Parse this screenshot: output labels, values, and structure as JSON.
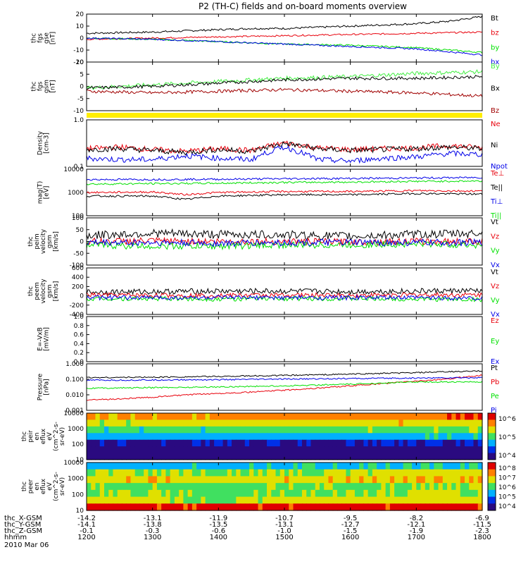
{
  "title": "P2 (TH-C) fields and on-board moments overview",
  "date_label": "2010 Mar 06",
  "time_axis": {
    "row_labels": [
      "thc_X-GSM",
      "thc_Y-GSM",
      "thc_Z-GSM",
      "hhmm"
    ],
    "ticks": [
      {
        "t": 1200,
        "x_gsm": "-14.2",
        "y_gsm": "-14.1",
        "z_gsm": "-0.1",
        "hhmm": "1200"
      },
      {
        "t": 1300,
        "x_gsm": "-13.1",
        "y_gsm": "-13.8",
        "z_gsm": "-0.3",
        "hhmm": "1300"
      },
      {
        "t": 1400,
        "x_gsm": "-11.9",
        "y_gsm": "-13.5",
        "z_gsm": "-0.6",
        "hhmm": "1400"
      },
      {
        "t": 1500,
        "x_gsm": "-10.7",
        "y_gsm": "-13.1",
        "z_gsm": "-1.0",
        "hhmm": "1500"
      },
      {
        "t": 1600,
        "x_gsm": "-9.5",
        "y_gsm": "-12.7",
        "z_gsm": "-1.5",
        "hhmm": "1600"
      },
      {
        "t": 1700,
        "x_gsm": "-8.2",
        "y_gsm": "-12.1",
        "z_gsm": "-1.9",
        "hhmm": "1700"
      },
      {
        "t": 1800,
        "x_gsm": "-6.9",
        "y_gsm": "-11.5",
        "z_gsm": "-2.3",
        "hhmm": "1800"
      }
    ]
  },
  "colors": {
    "black": "#000000",
    "red": "#e8000b",
    "green": "#00e000",
    "blue": "#0000e8",
    "darkred": "#a00000",
    "lime": "#44ee44",
    "yellow": "#ffee00"
  },
  "chart_data": [
    {
      "type": "line",
      "id": "fgs_gse",
      "ylabel": [
        "thc",
        "fgs",
        "gse",
        "[nT]"
      ],
      "ylim": [
        -20,
        20
      ],
      "yticks": [
        "20",
        "10",
        "0",
        "-10",
        "-20"
      ],
      "series": [
        {
          "name": "Bt",
          "color": "#000000",
          "x": [
            1200,
            1230,
            1300,
            1330,
            1400,
            1430,
            1500,
            1530,
            1600,
            1630,
            1700,
            1730,
            1800
          ],
          "y": [
            4,
            4.5,
            5,
            6,
            7,
            8,
            8,
            9,
            10,
            11,
            12,
            14,
            18
          ]
        },
        {
          "name": "bz",
          "color": "#e8000b",
          "x": [
            1200,
            1300,
            1400,
            1500,
            1600,
            1700,
            1800
          ],
          "y": [
            -1,
            0,
            1,
            2,
            3,
            4,
            5
          ]
        },
        {
          "name": "by",
          "color": "#00e000",
          "x": [
            1200,
            1300,
            1400,
            1500,
            1600,
            1700,
            1800
          ],
          "y": [
            0,
            -1,
            -3,
            -5,
            -6,
            -8,
            -12
          ]
        },
        {
          "name": "bx",
          "color": "#0000e8",
          "x": [
            1200,
            1300,
            1400,
            1500,
            1600,
            1700,
            1800
          ],
          "y": [
            0,
            -1,
            -3,
            -5,
            -7,
            -9,
            -14
          ]
        }
      ]
    },
    {
      "type": "line",
      "id": "fgs_gsm",
      "ylabel": [
        "thc",
        "fgs",
        "gsm",
        "[nT]"
      ],
      "ylim": [
        -15,
        15
      ],
      "yticks": [
        "10",
        "5",
        "0",
        "-5",
        "-10"
      ],
      "series": [
        {
          "name": "By",
          "color": "#44ee44",
          "x": [
            1200,
            1300,
            1400,
            1500,
            1600,
            1700,
            1800
          ],
          "y": [
            -1,
            1,
            3,
            5,
            6,
            8,
            9
          ]
        },
        {
          "name": "Bx",
          "color": "#000000",
          "x": [
            1200,
            1300,
            1400,
            1500,
            1600,
            1700,
            1800
          ],
          "y": [
            -1,
            0,
            2,
            4,
            5,
            5,
            6
          ]
        },
        {
          "name": "Bz",
          "color": "#a00000",
          "x": [
            1200,
            1300,
            1400,
            1500,
            1600,
            1700,
            1800
          ],
          "y": [
            -3,
            -4,
            -3,
            -2,
            -3,
            -4,
            -6
          ]
        }
      ]
    },
    {
      "type": "line",
      "id": "density",
      "log": true,
      "ylabel": [
        "Density",
        "[cm-3]"
      ],
      "ylim": [
        0.1,
        1.0
      ],
      "yticks": [
        "1.0",
        "0.1"
      ],
      "series": [
        {
          "name": "Ne",
          "color": "#e8000b",
          "x": [
            1200,
            1230,
            1300,
            1330,
            1400,
            1430,
            1500,
            1530,
            1600,
            1630,
            1700,
            1730,
            1800
          ],
          "y": [
            0.24,
            0.26,
            0.23,
            0.21,
            0.24,
            0.22,
            0.32,
            0.25,
            0.23,
            0.24,
            0.25,
            0.28,
            0.25
          ]
        },
        {
          "name": "Ni",
          "color": "#000000",
          "x": [
            1200,
            1230,
            1300,
            1330,
            1400,
            1430,
            1500,
            1530,
            1600,
            1630,
            1700,
            1730,
            1800
          ],
          "y": [
            0.23,
            0.24,
            0.22,
            0.2,
            0.23,
            0.21,
            0.31,
            0.24,
            0.22,
            0.23,
            0.24,
            0.26,
            0.24
          ]
        },
        {
          "name": "Npot",
          "color": "#0000e8",
          "x": [
            1200,
            1230,
            1300,
            1330,
            1400,
            1430,
            1500,
            1530,
            1600,
            1630,
            1700,
            1730,
            1800
          ],
          "y": [
            0.15,
            0.14,
            0.14,
            0.17,
            0.15,
            0.14,
            0.26,
            0.14,
            0.13,
            0.15,
            0.16,
            0.19,
            0.18
          ]
        }
      ]
    },
    {
      "type": "line",
      "id": "temperature",
      "log": true,
      "ylabel": [
        "mag(T)",
        "[eV]"
      ],
      "ylim": [
        100,
        10000
      ],
      "yticks": [
        "10000",
        "1000",
        "100"
      ],
      "series": [
        {
          "name": "Te⊥",
          "color": "#e8000b",
          "x": [
            1200,
            1300,
            1330,
            1400,
            1500,
            1600,
            1700,
            1800
          ],
          "y": [
            1000,
            1050,
            800,
            1000,
            1100,
            1100,
            1200,
            1150
          ]
        },
        {
          "name": "Te||",
          "color": "#000000",
          "x": [
            1200,
            1300,
            1330,
            1400,
            1500,
            1600,
            1700,
            1800
          ],
          "y": [
            700,
            700,
            500,
            700,
            800,
            800,
            900,
            850
          ]
        },
        {
          "name": "Ti⊥",
          "color": "#0000e8",
          "x": [
            1200,
            1300,
            1400,
            1500,
            1600,
            1700,
            1800
          ],
          "y": [
            3600,
            3600,
            3700,
            3900,
            4000,
            4200,
            4400
          ]
        },
        {
          "name": "Ti||",
          "color": "#00e000",
          "x": [
            1200,
            1300,
            1400,
            1500,
            1600,
            1700,
            1800
          ],
          "y": [
            2300,
            2400,
            2500,
            2700,
            2800,
            3000,
            3100
          ]
        }
      ]
    },
    {
      "type": "line",
      "id": "peim_velocity",
      "ylabel": [
        "thc",
        "peim",
        "velocity",
        "gsm",
        "[km/s]"
      ],
      "ylim": [
        -100,
        100
      ],
      "yticks": [
        "100",
        "50",
        "0",
        "-50",
        "-100"
      ],
      "series": [
        {
          "name": "Vt",
          "color": "#000000",
          "x": [
            1200,
            1300,
            1400,
            1500,
            1600,
            1700,
            1800
          ],
          "y": [
            25,
            35,
            30,
            28,
            22,
            30,
            35
          ]
        },
        {
          "name": "Vz",
          "color": "#e8000b",
          "x": [
            1200,
            1300,
            1400,
            1500,
            1600,
            1700,
            1800
          ],
          "y": [
            0,
            2,
            0,
            0,
            -2,
            0,
            0
          ]
        },
        {
          "name": "Vy",
          "color": "#00e000",
          "x": [
            1200,
            1300,
            1400,
            1500,
            1600,
            1700,
            1800
          ],
          "y": [
            -15,
            -20,
            -20,
            -15,
            -15,
            -10,
            -15
          ]
        },
        {
          "name": "Vx",
          "color": "#0000e8",
          "x": [
            1200,
            1300,
            1400,
            1500,
            1600,
            1700,
            1800
          ],
          "y": [
            -5,
            -5,
            -8,
            -5,
            -5,
            -5,
            -5
          ]
        }
      ]
    },
    {
      "type": "line",
      "id": "peem_velocity",
      "ylabel": [
        "thc",
        "peem",
        "velocity",
        "gsm",
        "[km/s]"
      ],
      "ylim": [
        -400,
        600
      ],
      "yticks": [
        "600",
        "400",
        "200",
        "0",
        "-200",
        "-400"
      ],
      "series": [
        {
          "name": "Vt",
          "color": "#000000",
          "x": [
            1200,
            1300,
            1400,
            1500,
            1600,
            1700,
            1800
          ],
          "y": [
            80,
            90,
            100,
            100,
            90,
            100,
            110
          ]
        },
        {
          "name": "Vz",
          "color": "#e8000b",
          "x": [
            1200,
            1300,
            1400,
            1500,
            1600,
            1700,
            1800
          ],
          "y": [
            20,
            10,
            10,
            15,
            10,
            20,
            20
          ]
        },
        {
          "name": "Vy",
          "color": "#00e000",
          "x": [
            1200,
            1300,
            1400,
            1500,
            1600,
            1700,
            1800
          ],
          "y": [
            -60,
            -60,
            -70,
            -60,
            -60,
            -70,
            -80
          ]
        },
        {
          "name": "Vx",
          "color": "#0000e8",
          "x": [
            1200,
            1300,
            1400,
            1500,
            1600,
            1700,
            1800
          ],
          "y": [
            -40,
            -40,
            -40,
            -40,
            -40,
            -40,
            -50
          ]
        }
      ]
    },
    {
      "type": "line",
      "id": "efield",
      "ylabel": [
        "E=-VxB",
        "[mV/m]"
      ],
      "ylim": [
        0,
        1.0
      ],
      "yticks": [
        "1.0",
        "0.8",
        "0.6",
        "0.4",
        "0.2",
        "0.0"
      ],
      "series": [
        {
          "name": "Ez",
          "color": "#e8000b",
          "x": [],
          "y": []
        },
        {
          "name": "Ey",
          "color": "#00e000",
          "x": [],
          "y": []
        },
        {
          "name": "Ex",
          "color": "#0000e8",
          "x": [],
          "y": []
        }
      ]
    },
    {
      "type": "line",
      "id": "pressure",
      "log": true,
      "ylabel": [
        "Pressure",
        "[nPa]"
      ],
      "ylim": [
        0.0004,
        1.5
      ],
      "yticks": [
        "1.000",
        "0.100",
        "0.010",
        "0.001"
      ],
      "series": [
        {
          "name": "Pt",
          "color": "#000000",
          "x": [
            1200,
            1300,
            1400,
            1500,
            1600,
            1700,
            1800
          ],
          "y": [
            0.13,
            0.14,
            0.16,
            0.19,
            0.24,
            0.31,
            0.42
          ]
        },
        {
          "name": "Pb",
          "color": "#e8000b",
          "x": [
            1200,
            1230,
            1300,
            1330,
            1400,
            1430,
            1500,
            1530,
            1600,
            1630,
            1700,
            1730,
            1800
          ],
          "y": [
            0.0025,
            0.003,
            0.004,
            0.006,
            0.008,
            0.01,
            0.014,
            0.02,
            0.03,
            0.045,
            0.07,
            0.1,
            0.2
          ]
        },
        {
          "name": "Pe",
          "color": "#00e000",
          "x": [
            1200,
            1300,
            1400,
            1500,
            1600,
            1700,
            1800
          ],
          "y": [
            0.02,
            0.022,
            0.025,
            0.03,
            0.04,
            0.06,
            0.06
          ]
        },
        {
          "name": "Pi",
          "color": "#0000e8",
          "x": [
            1200,
            1300,
            1400,
            1500,
            1600,
            1700,
            1800
          ],
          "y": [
            0.08,
            0.085,
            0.09,
            0.1,
            0.11,
            0.12,
            0.13
          ]
        }
      ]
    },
    {
      "type": "heatmap",
      "id": "peir_spec",
      "ylabel": [
        "thc",
        "peir",
        "en",
        "eflux",
        "eV",
        "(cm^2-s-",
        "sr-eV)"
      ],
      "yticks": [
        "10000",
        "1000",
        "100",
        "10"
      ],
      "colorbar_labels": [
        "10^6",
        "10^5",
        "10^4"
      ],
      "rows_eV": [
        10000,
        3000,
        1000,
        300,
        100,
        30,
        10
      ],
      "x": [
        1200,
        1300,
        1400,
        1500,
        1600,
        1700,
        1800
      ],
      "levels": [
        [
          0.75,
          0.78,
          0.8,
          0.82,
          0.84,
          0.87,
          0.9
        ],
        [
          0.62,
          0.64,
          0.66,
          0.66,
          0.68,
          0.7,
          0.72
        ],
        [
          0.48,
          0.5,
          0.5,
          0.52,
          0.55,
          0.55,
          0.58
        ],
        [
          0.35,
          0.36,
          0.36,
          0.38,
          0.38,
          0.4,
          0.4
        ],
        [
          0.12,
          0.12,
          0.14,
          0.14,
          0.14,
          0.16,
          0.16
        ],
        [
          0.05,
          0.06,
          0.06,
          0.08,
          0.06,
          0.07,
          0.08
        ],
        [
          0.03,
          0.03,
          0.04,
          0.05,
          0.05,
          0.05,
          0.06
        ]
      ]
    },
    {
      "type": "heatmap",
      "id": "peer_spec",
      "ylabel": [
        "thc",
        "peer",
        "en",
        "eflux",
        "eV",
        "(cm^2-s-",
        "sr-eV)"
      ],
      "yticks": [
        "10000",
        "1000",
        "100",
        "10"
      ],
      "colorbar_labels": [
        "10^8",
        "10^7",
        "10^6",
        "10^5",
        "10^4"
      ],
      "rows_eV": [
        10000,
        3000,
        1000,
        300,
        100,
        30,
        10
      ],
      "x": [
        1200,
        1300,
        1400,
        1500,
        1600,
        1700,
        1800
      ],
      "levels": [
        [
          0.38,
          0.4,
          0.4,
          0.42,
          0.44,
          0.45,
          0.45
        ],
        [
          0.6,
          0.62,
          0.58,
          0.62,
          0.64,
          0.66,
          0.68
        ],
        [
          0.7,
          0.72,
          0.65,
          0.72,
          0.72,
          0.75,
          0.76
        ],
        [
          0.58,
          0.55,
          0.5,
          0.56,
          0.56,
          0.58,
          0.6
        ],
        [
          0.62,
          0.6,
          0.52,
          0.58,
          0.6,
          0.62,
          0.62
        ],
        [
          0.66,
          0.66,
          0.6,
          0.65,
          0.66,
          0.68,
          0.68
        ],
        [
          0.95,
          0.95,
          0.95,
          0.95,
          0.95,
          0.95,
          0.95
        ]
      ]
    }
  ]
}
